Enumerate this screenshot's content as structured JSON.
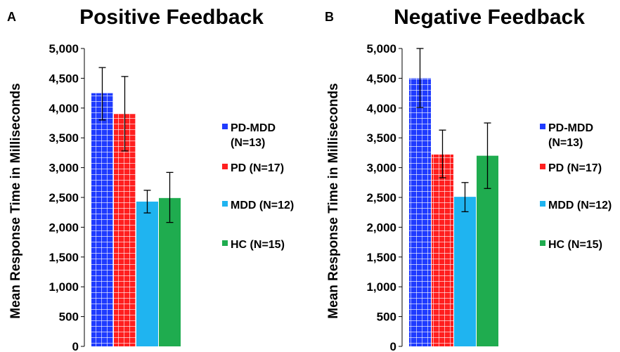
{
  "chart_data": [
    {
      "panel_label": "A",
      "title": "Positive Feedback",
      "type": "bar",
      "ylabel": "Mean Response Time in Milliseconds",
      "ylim": [
        0,
        5000
      ],
      "yticks": [
        "0",
        "500",
        "1,000",
        "1,500",
        "2,000",
        "2,500",
        "3,000",
        "3,500",
        "4,000",
        "4,500",
        "5,000"
      ],
      "grid": false,
      "legend_position": "right",
      "series": [
        {
          "name": "PD-MDD (N=13)",
          "legend_lines": [
            "PD-MDD",
            "(N=13)"
          ],
          "value": 4250,
          "error": [
            3800,
            4680
          ],
          "color": "#1f3bff",
          "pattern": "grid"
        },
        {
          "name": "PD (N=17)",
          "legend_lines": [
            "PD (N=17)"
          ],
          "value": 3900,
          "error": [
            3280,
            4530
          ],
          "color": "#ff1f1f",
          "pattern": "grid"
        },
        {
          "name": "MDD (N=12)",
          "legend_lines": [
            "MDD (N=12)"
          ],
          "value": 2430,
          "error": [
            2240,
            2620
          ],
          "color": "#1fb4f0",
          "pattern": "none"
        },
        {
          "name": "HC (N=15)",
          "legend_lines": [
            "HC (N=15)"
          ],
          "value": 2490,
          "error": [
            2080,
            2920
          ],
          "color": "#1fac4f",
          "pattern": "none"
        }
      ]
    },
    {
      "panel_label": "B",
      "title": "Negative Feedback",
      "type": "bar",
      "ylabel": "Mean Response Time in Milliseconds",
      "ylim": [
        0,
        5000
      ],
      "yticks": [
        "0",
        "500",
        "1,000",
        "1,500",
        "2,000",
        "2,500",
        "3,000",
        "3,500",
        "4,000",
        "4,500",
        "5,000"
      ],
      "grid": false,
      "legend_position": "right",
      "series": [
        {
          "name": "PD-MDD (N=13)",
          "legend_lines": [
            "PD-MDD",
            "(N=13)"
          ],
          "value": 4500,
          "error": [
            4010,
            5000
          ],
          "color": "#1f3bff",
          "pattern": "grid"
        },
        {
          "name": "PD (N=17)",
          "legend_lines": [
            "PD (N=17)"
          ],
          "value": 3220,
          "error": [
            2830,
            3630
          ],
          "color": "#ff1f1f",
          "pattern": "grid"
        },
        {
          "name": "MDD (N=12)",
          "legend_lines": [
            "MDD (N=12)"
          ],
          "value": 2510,
          "error": [
            2260,
            2750
          ],
          "color": "#1fb4f0",
          "pattern": "none"
        },
        {
          "name": "HC (N=15)",
          "legend_lines": [
            "HC (N=15)"
          ],
          "value": 3200,
          "error": [
            2650,
            3750
          ],
          "color": "#1fac4f",
          "pattern": "none"
        }
      ]
    }
  ]
}
